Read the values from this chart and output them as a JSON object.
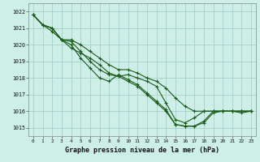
{
  "title": "Graphe pression niveau de la mer (hPa)",
  "background_color": "#ceeee8",
  "grid_color": "#a8d0cc",
  "line_color": "#1a5c1a",
  "ylim": [
    1014.5,
    1022.5
  ],
  "yticks": [
    1015,
    1016,
    1017,
    1018,
    1019,
    1020,
    1021,
    1022
  ],
  "xlim": [
    -0.5,
    23.5
  ],
  "xticks": [
    0,
    1,
    2,
    3,
    4,
    5,
    6,
    7,
    8,
    9,
    10,
    11,
    12,
    13,
    14,
    15,
    16,
    17,
    18,
    19,
    20,
    21,
    22,
    23
  ],
  "line1": [
    1021.8,
    1021.2,
    1020.8,
    1020.3,
    1019.8,
    1019.5,
    1019.2,
    1018.8,
    1018.3,
    1018.1,
    1017.8,
    1017.5,
    1017.0,
    1016.5,
    1016.0,
    1015.2,
    1015.1,
    1015.1,
    1015.3,
    1015.9,
    1016.0,
    1016.0,
    1015.9,
    1016.0
  ],
  "line2": [
    1021.8,
    1021.2,
    1021.0,
    1020.3,
    1020.0,
    1019.2,
    1018.6,
    1018.0,
    1017.8,
    1018.2,
    1017.9,
    1017.6,
    1017.1,
    1016.6,
    1016.1,
    1015.2,
    1015.1,
    1015.1,
    1015.4,
    1016.0,
    1016.0,
    1016.0,
    1016.0,
    1016.0
  ],
  "line3": [
    1021.8,
    1021.2,
    1021.0,
    1020.3,
    1020.2,
    1019.6,
    1019.0,
    1018.5,
    1018.2,
    1018.1,
    1018.2,
    1018.0,
    1017.8,
    1017.5,
    1016.5,
    1015.5,
    1015.3,
    1015.6,
    1016.0,
    1016.0,
    1016.0,
    1016.0,
    1016.0,
    1016.0
  ],
  "line4": [
    1021.8,
    1021.2,
    1021.0,
    1020.3,
    1020.3,
    1020.0,
    1019.6,
    1019.2,
    1018.8,
    1018.5,
    1018.5,
    1018.3,
    1018.0,
    1017.8,
    1017.4,
    1016.8,
    1016.3,
    1016.0,
    1016.0,
    1016.0,
    1016.0,
    1016.0,
    1016.0,
    1016.0
  ]
}
